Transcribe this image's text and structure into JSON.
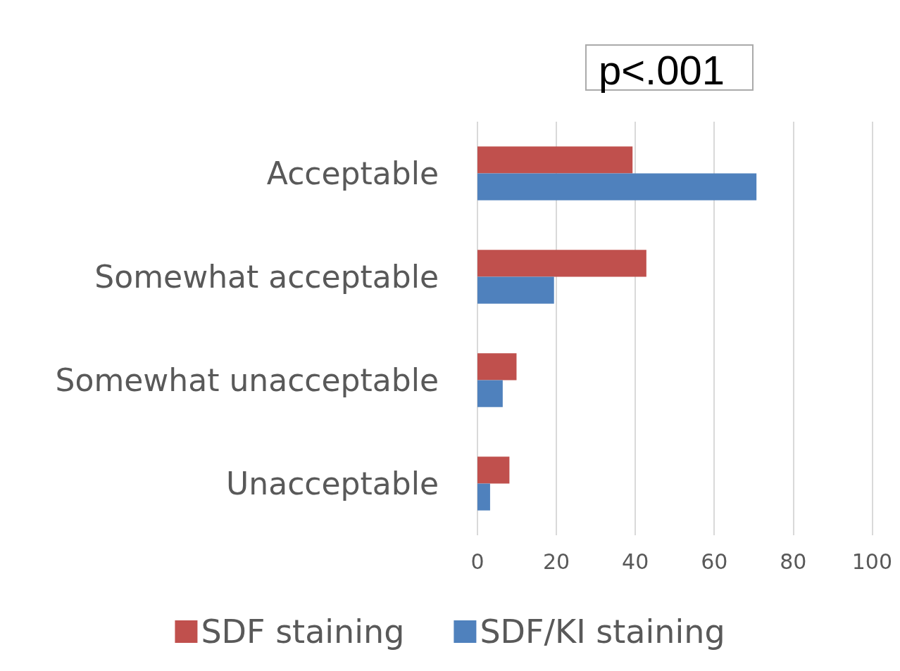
{
  "chart_data": {
    "type": "bar",
    "orientation": "horizontal",
    "categories": [
      "Acceptable",
      "Somewhat acceptable",
      "Somewhat unacceptable",
      "Unacceptable"
    ],
    "series": [
      {
        "name": "SDF staining",
        "color": "#c0504d",
        "values": [
          39.3,
          42.8,
          9.9,
          8.1
        ]
      },
      {
        "name": "SDF/KI staining",
        "color": "#4f81bd",
        "values": [
          70.7,
          19.4,
          6.4,
          3.2
        ]
      }
    ],
    "xlim": [
      0,
      100
    ],
    "xticks": [
      0,
      20,
      40,
      60,
      80,
      100
    ],
    "grid": "x",
    "legend": "bottom",
    "annotations": [
      "p<.001"
    ]
  }
}
